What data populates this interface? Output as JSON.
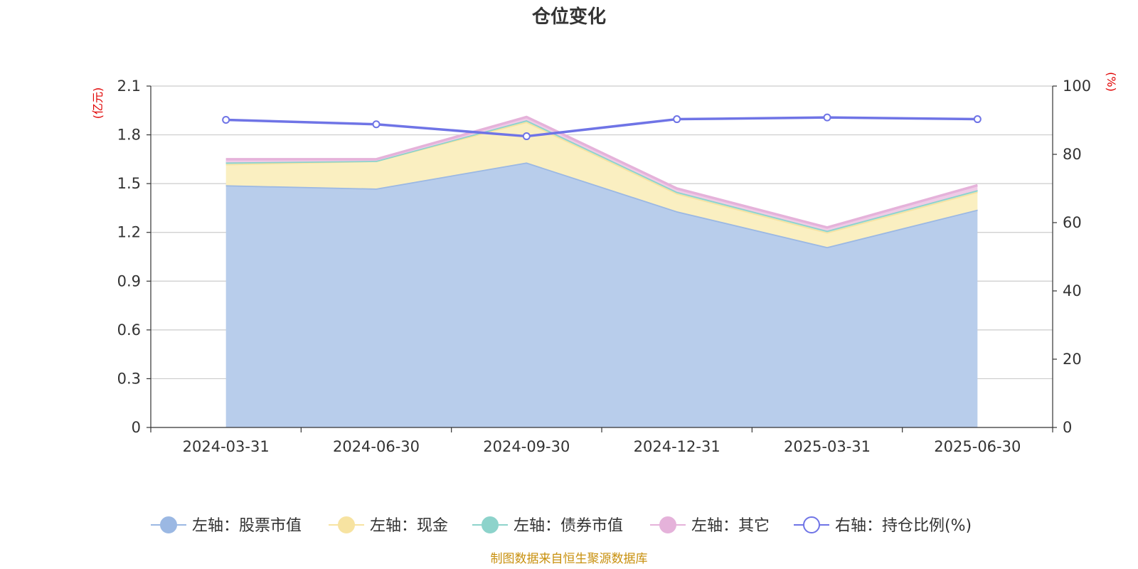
{
  "chart_data": {
    "type": "area",
    "title": "仓位变化",
    "categories": [
      "2024-03-31",
      "2024-06-30",
      "2024-09-30",
      "2024-12-31",
      "2025-03-31",
      "2025-06-30"
    ],
    "left_axis": {
      "unit": "(亿元)",
      "ylim": [
        0,
        2.1
      ],
      "ticks": [
        0,
        0.3,
        0.6,
        0.9,
        1.2,
        1.5,
        1.8,
        2.1
      ],
      "tick_labels": [
        "0",
        "0.3",
        "0.6",
        "0.9",
        "1.2",
        "1.5",
        "1.8",
        "2.1"
      ]
    },
    "right_axis": {
      "unit": "(%)",
      "ylim": [
        0,
        100
      ],
      "ticks": [
        0,
        20,
        40,
        60,
        80,
        100
      ],
      "tick_labels": [
        "0",
        "20",
        "40",
        "60",
        "80",
        "100"
      ]
    },
    "stacked": true,
    "series": [
      {
        "name": "左轴：股票市值",
        "axis": "left",
        "values": [
          1.49,
          1.47,
          1.63,
          1.33,
          1.11,
          1.34
        ],
        "color": "#9bb8e3",
        "fill": "#b8cdeb"
      },
      {
        "name": "左轴：现金",
        "axis": "left",
        "values": [
          0.13,
          0.17,
          0.25,
          0.11,
          0.09,
          0.11
        ],
        "color": "#f7e3a1",
        "fill": "#faefc1"
      },
      {
        "name": "左轴：债券市值",
        "axis": "left",
        "values": [
          0.01,
          0.0,
          0.01,
          0.01,
          0.01,
          0.01
        ],
        "color": "#8dd3cb",
        "fill": "#b7e4df"
      },
      {
        "name": "左轴：其它",
        "axis": "left",
        "values": [
          0.02,
          0.01,
          0.02,
          0.02,
          0.02,
          0.03
        ],
        "color": "#e5b2da",
        "fill": "#efcbe7"
      },
      {
        "name": "右轴：持仓比例(%)",
        "axis": "right",
        "type": "line",
        "values": [
          90.1,
          88.8,
          85.3,
          90.3,
          90.8,
          90.3
        ],
        "color": "#6f74e6"
      }
    ],
    "grid": true,
    "legend_position": "bottom",
    "source": "制图数据来自恒生聚源数据库"
  }
}
